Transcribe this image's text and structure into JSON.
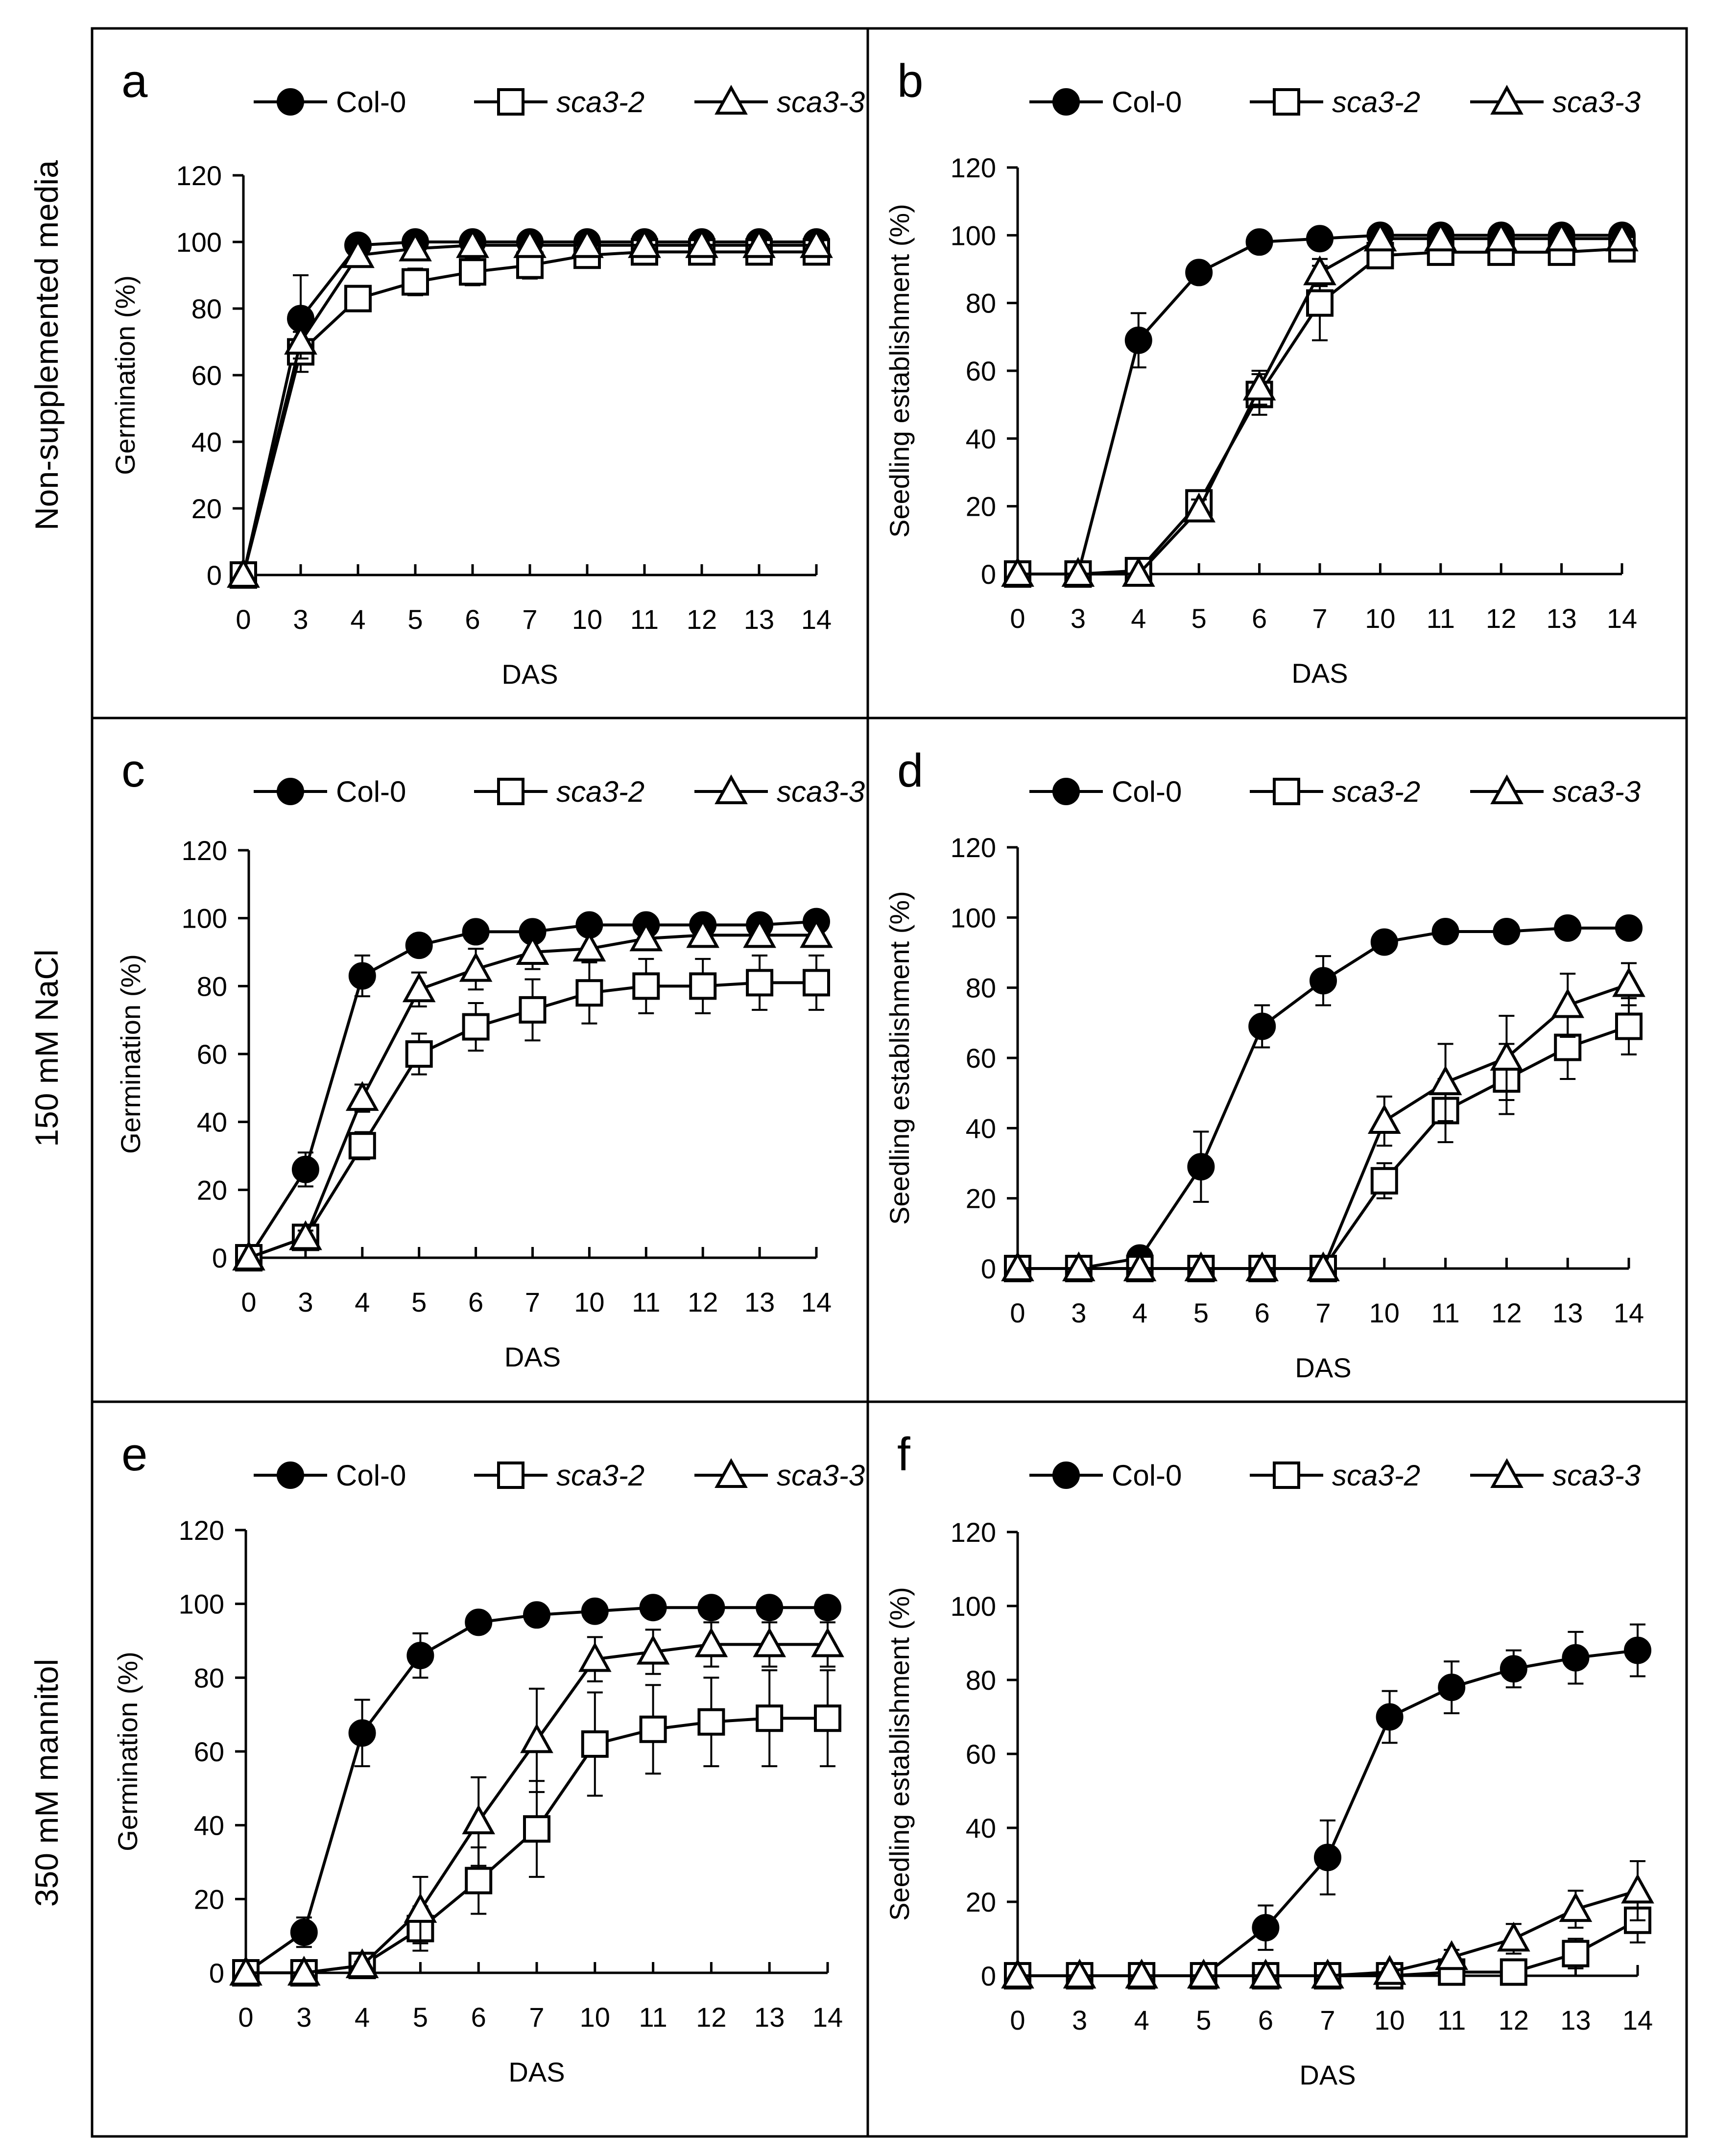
{
  "figure": {
    "row_labels": [
      "Non-supplemented media",
      "150 mM NaCl",
      "350 mM mannitol"
    ],
    "legend": [
      "Col-0",
      "sca3-2",
      "sca3-3"
    ]
  },
  "chart_data": [
    {
      "type": "line",
      "panel": "a",
      "xlabel": "DAS",
      "ylabel": "Germination  (%)",
      "categories": [
        "0",
        "3",
        "4",
        "5",
        "6",
        "7",
        "10",
        "11",
        "12",
        "13",
        "14"
      ],
      "ylim": [
        0,
        120
      ],
      "yticks": [
        0,
        20,
        40,
        60,
        80,
        100,
        120
      ],
      "series": [
        {
          "name": "Col-0",
          "marker": "circle",
          "values": [
            0,
            77,
            99,
            100,
            100,
            100,
            100,
            100,
            100,
            100,
            100
          ],
          "errors": [
            0,
            13,
            1,
            1,
            0,
            0,
            0,
            0,
            0,
            0,
            0
          ]
        },
        {
          "name": "sca3-2",
          "marker": "square",
          "values": [
            0,
            67,
            83,
            88,
            91,
            93,
            96,
            97,
            97,
            97,
            97
          ],
          "errors": [
            0,
            6,
            2,
            4,
            4,
            4,
            2,
            2,
            2,
            2,
            2
          ]
        },
        {
          "name": "sca3-3",
          "marker": "triangle",
          "values": [
            0,
            70,
            96,
            98,
            99,
            99,
            99,
            99,
            99,
            99,
            99
          ],
          "errors": [
            0,
            5,
            2,
            1,
            1,
            1,
            1,
            1,
            1,
            1,
            1
          ]
        }
      ]
    },
    {
      "type": "line",
      "panel": "b",
      "xlabel": "DAS",
      "ylabel": "Seedling establishment (%)",
      "categories": [
        "0",
        "3",
        "4",
        "5",
        "6",
        "7",
        "10",
        "11",
        "12",
        "13",
        "14"
      ],
      "ylim": [
        0,
        120
      ],
      "yticks": [
        0,
        20,
        40,
        60,
        80,
        100,
        120
      ],
      "series": [
        {
          "name": "Col-0",
          "marker": "circle",
          "values": [
            0,
            0,
            69,
            89,
            98,
            99,
            100,
            100,
            100,
            100,
            100
          ],
          "errors": [
            0,
            0,
            8,
            2,
            1,
            1,
            0,
            0,
            0,
            0,
            0
          ]
        },
        {
          "name": "sca3-2",
          "marker": "square",
          "values": [
            0,
            0,
            1,
            21,
            53,
            80,
            94,
            95,
            95,
            95,
            96
          ],
          "errors": [
            0,
            0,
            1,
            3,
            6,
            11,
            3,
            2,
            2,
            2,
            2
          ]
        },
        {
          "name": "sca3-3",
          "marker": "triangle",
          "values": [
            0,
            0,
            0,
            19,
            55,
            89,
            99,
            99,
            99,
            99,
            99
          ],
          "errors": [
            0,
            0,
            0,
            3,
            5,
            4,
            1,
            1,
            1,
            1,
            1
          ]
        }
      ]
    },
    {
      "type": "line",
      "panel": "c",
      "xlabel": "DAS",
      "ylabel": "Germination (%)",
      "categories": [
        "0",
        "3",
        "4",
        "5",
        "6",
        "7",
        "10",
        "11",
        "12",
        "13",
        "14"
      ],
      "ylim": [
        0,
        120
      ],
      "yticks": [
        0,
        20,
        40,
        60,
        80,
        100,
        120
      ],
      "series": [
        {
          "name": "Col-0",
          "marker": "circle",
          "values": [
            0,
            26,
            83,
            92,
            96,
            96,
            98,
            98,
            98,
            98,
            99
          ],
          "errors": [
            0,
            5,
            6,
            2,
            3,
            3,
            2,
            2,
            2,
            2,
            2
          ]
        },
        {
          "name": "sca3-2",
          "marker": "square",
          "values": [
            0,
            6,
            33,
            60,
            68,
            73,
            78,
            80,
            80,
            81,
            81
          ],
          "errors": [
            0,
            2,
            4,
            6,
            7,
            9,
            9,
            8,
            8,
            8,
            8
          ]
        },
        {
          "name": "sca3-3",
          "marker": "triangle",
          "values": [
            0,
            6,
            47,
            79,
            85,
            90,
            91,
            94,
            95,
            95,
            95
          ],
          "errors": [
            0,
            2,
            4,
            5,
            6,
            5,
            4,
            3,
            3,
            3,
            3
          ]
        }
      ]
    },
    {
      "type": "line",
      "panel": "d",
      "xlabel": "DAS",
      "ylabel": "Seedling establishment (%)",
      "categories": [
        "0",
        "3",
        "4",
        "5",
        "6",
        "7",
        "10",
        "11",
        "12",
        "13",
        "14"
      ],
      "ylim": [
        0,
        120
      ],
      "yticks": [
        0,
        20,
        40,
        60,
        80,
        100,
        120
      ],
      "series": [
        {
          "name": "Col-0",
          "marker": "circle",
          "values": [
            0,
            0,
            3,
            29,
            69,
            82,
            93,
            96,
            96,
            97,
            97
          ],
          "errors": [
            0,
            0,
            1,
            10,
            6,
            7,
            3,
            2,
            2,
            2,
            2
          ]
        },
        {
          "name": "sca3-2",
          "marker": "square",
          "values": [
            0,
            0,
            0,
            0,
            0,
            0,
            25,
            45,
            54,
            63,
            69
          ],
          "errors": [
            0,
            0,
            0,
            0,
            0,
            0,
            5,
            9,
            10,
            9,
            8
          ]
        },
        {
          "name": "sca3-3",
          "marker": "triangle",
          "values": [
            0,
            0,
            0,
            0,
            0,
            0,
            42,
            53,
            60,
            75,
            81
          ],
          "errors": [
            0,
            0,
            0,
            0,
            0,
            0,
            7,
            11,
            12,
            9,
            6
          ]
        }
      ]
    },
    {
      "type": "line",
      "panel": "e",
      "xlabel": "DAS",
      "ylabel": "Germination (%)",
      "categories": [
        "0",
        "3",
        "4",
        "5",
        "6",
        "7",
        "10",
        "11",
        "12",
        "13",
        "14"
      ],
      "ylim": [
        0,
        120
      ],
      "yticks": [
        0,
        20,
        40,
        60,
        80,
        100,
        120
      ],
      "series": [
        {
          "name": "Col-0",
          "marker": "circle",
          "values": [
            0,
            11,
            65,
            86,
            95,
            97,
            98,
            99,
            99,
            99,
            99
          ],
          "errors": [
            0,
            4,
            9,
            6,
            2,
            1,
            1,
            1,
            1,
            1,
            1
          ]
        },
        {
          "name": "sca3-2",
          "marker": "square",
          "values": [
            0,
            0,
            2,
            12,
            25,
            39,
            62,
            66,
            68,
            69,
            69
          ],
          "errors": [
            0,
            0,
            1,
            6,
            9,
            13,
            14,
            12,
            12,
            13,
            13
          ]
        },
        {
          "name": "sca3-3",
          "marker": "triangle",
          "values": [
            0,
            0,
            2,
            17,
            41,
            63,
            85,
            87,
            89,
            89,
            89
          ],
          "errors": [
            0,
            0,
            1,
            9,
            12,
            14,
            6,
            6,
            6,
            6,
            6
          ]
        }
      ]
    },
    {
      "type": "line",
      "panel": "f",
      "xlabel": "DAS",
      "ylabel": "Seedling establishment (%)",
      "categories": [
        "0",
        "3",
        "4",
        "5",
        "6",
        "7",
        "10",
        "11",
        "12",
        "13",
        "14"
      ],
      "ylim": [
        0,
        120
      ],
      "yticks": [
        0,
        20,
        40,
        60,
        80,
        100,
        120
      ],
      "series": [
        {
          "name": "Col-0",
          "marker": "circle",
          "values": [
            0,
            0,
            0,
            0,
            13,
            32,
            70,
            78,
            83,
            86,
            88
          ],
          "errors": [
            0,
            0,
            0,
            0,
            6,
            10,
            7,
            7,
            5,
            7,
            7
          ]
        },
        {
          "name": "sca3-2",
          "marker": "square",
          "values": [
            0,
            0,
            0,
            0,
            0,
            0,
            0,
            1,
            1,
            6,
            15
          ],
          "errors": [
            0,
            0,
            0,
            0,
            0,
            0,
            0,
            1,
            1,
            4,
            6
          ]
        },
        {
          "name": "sca3-3",
          "marker": "triangle",
          "values": [
            0,
            0,
            0,
            0,
            0,
            0,
            1,
            5,
            10,
            18,
            23
          ],
          "errors": [
            0,
            0,
            0,
            0,
            0,
            0,
            1,
            2,
            4,
            5,
            8
          ]
        }
      ]
    }
  ]
}
